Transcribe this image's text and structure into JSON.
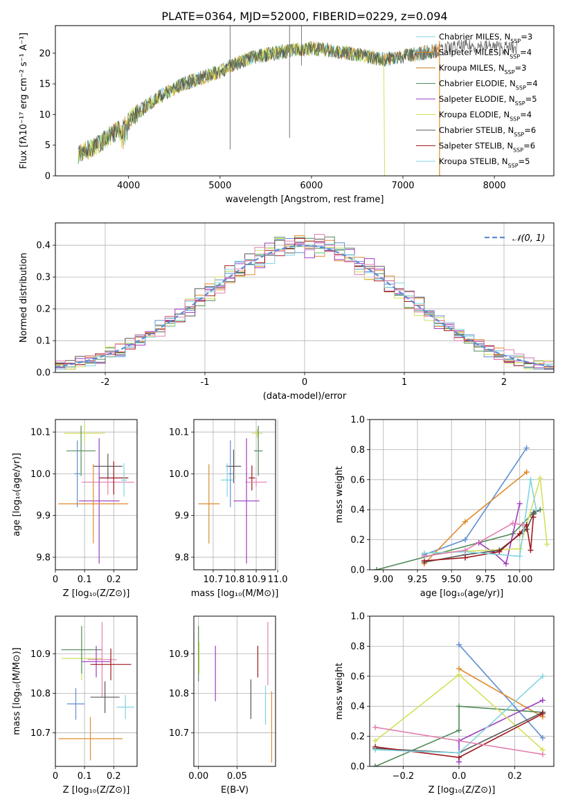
{
  "title": "PLATE=0364, MJD=52000, FIBERID=0229, z=0.094",
  "colors": {
    "chabrier_miles": "#5f8dd3",
    "salpeter_miles": "#e08a2e",
    "kroupa_miles": "#c27a1e",
    "chabrier_elodie": "#4f8a57",
    "salpeter_elodie": "#9c3bbf",
    "kroupa_elodie": "#d4e05a",
    "chabrier_stelib": "#555555",
    "salpeter_stelib": "#a0161c",
    "kroupa_stelib": "#7fd3e0",
    "pink": "#e37fb0",
    "gaussian": "#5b8dd0",
    "grid": "#b0b0b0"
  },
  "chart_data": [
    {
      "id": "spectrum",
      "type": "line",
      "xlabel": "wavelength [Angstrom, rest frame]",
      "ylabel": "Flux [fλ10⁻¹⁷ erg cm⁻² s⁻¹ A⁻¹]",
      "xlim": [
        3200,
        8650
      ],
      "ylim": [
        0,
        24.5
      ],
      "xticks": [
        4000,
        5000,
        6000,
        7000,
        8000
      ],
      "yticks": [
        0,
        5,
        10,
        15,
        20
      ],
      "legend": [
        "Chabrier MILES, N_SSP=3",
        "Salpeter MILES, N_SSP=4",
        "Kroupa MILES, N_SSP=3",
        "Chabrier ELODIE, N_SSP=4",
        "Salpeter ELODIE, N_SSP=5",
        "Kroupa ELODIE, N_SSP=4",
        "Chabrier STELIB, N_SSP=6",
        "Salpeter STELIB, N_SSP=6",
        "Kroupa STELIB, N_SSP=5"
      ],
      "continuum": {
        "x": [
          3450,
          3600,
          3800,
          4000,
          4200,
          4400,
          4600,
          4800,
          5000,
          5200,
          5400,
          5600,
          5800,
          6000,
          6200,
          6400,
          6600,
          6800,
          7000,
          7200,
          7400,
          7600,
          7800,
          8000,
          8200
        ],
        "y": [
          3.5,
          4.5,
          6.5,
          9.0,
          11.5,
          13.5,
          15.0,
          16.0,
          17.0,
          18.5,
          19.5,
          20.0,
          20.5,
          20.8,
          20.5,
          20.0,
          19.5,
          19.0,
          19.5,
          20.0,
          20.5,
          21.0,
          21.2,
          21.0,
          20.8
        ]
      }
    },
    {
      "id": "residuals",
      "type": "bar",
      "xlabel": "(data-model)/error",
      "ylabel": "Normed distribution",
      "xlim": [
        -2.5,
        2.5
      ],
      "ylim": [
        0,
        0.47
      ],
      "xticks": [
        -2,
        -1,
        0,
        1,
        2
      ],
      "yticks": [
        0.0,
        0.1,
        0.2,
        0.3,
        0.4
      ],
      "legend": "𝒩(0, 1)",
      "bin_width": 0.1
    },
    {
      "id": "age_vs_z",
      "type": "scatter",
      "xlabel": "Z [log₁₀(Z/Z⊙)]",
      "ylabel": "age  [log₁₀(age/yr)]",
      "xlim": [
        0.0,
        0.28
      ],
      "ylim": [
        9.77,
        10.13
      ],
      "xticks": [
        0.0,
        0.1,
        0.2
      ],
      "yticks": [
        9.8,
        9.9,
        10.0,
        10.1
      ],
      "points": [
        {
          "c": "kroupa_elodie",
          "x": 0.1,
          "xe": 0.07,
          "y": 10.097,
          "ye": 0.025
        },
        {
          "c": "chabrier_elodie",
          "x": 0.088,
          "xe": 0.05,
          "y": 10.055,
          "ye": 0.06
        },
        {
          "c": "chabrier_miles",
          "x": 0.075,
          "xe": 0.01,
          "y": 10.0,
          "ye": 0.08
        },
        {
          "c": "pink",
          "x": 0.18,
          "xe": 0.09,
          "y": 9.98,
          "ye": 0.03
        },
        {
          "c": "salpeter_stelib",
          "x": 0.2,
          "xe": 0.05,
          "y": 9.99,
          "ye": 0.04
        },
        {
          "c": "chabrier_stelib",
          "x": 0.18,
          "xe": 0.05,
          "y": 10.018,
          "ye": 0.03
        },
        {
          "c": "kroupa_stelib",
          "x": 0.235,
          "xe": 0.01,
          "y": 9.985,
          "ye": 0.04
        },
        {
          "c": "salpeter_elodie",
          "x": 0.15,
          "xe": 0.07,
          "y": 9.935,
          "ye": 0.15
        },
        {
          "c": "salpeter_miles",
          "x": 0.13,
          "xe": 0.12,
          "y": 9.928,
          "ye": 0.095
        }
      ]
    },
    {
      "id": "age_vs_mass",
      "type": "scatter",
      "xlabel": "mass [log₁₀(M/M⊙)]",
      "ylabel": "",
      "xlim": [
        10.61,
        10.99
      ],
      "ylim": [
        9.77,
        10.13
      ],
      "xticks": [
        10.7,
        10.8,
        10.9,
        11.0
      ],
      "xticklabels": [
        "10.7",
        "10.8",
        "10.9",
        "11.0"
      ],
      "yticks": [
        9.8,
        9.9,
        10.0,
        10.1
      ],
      "points": [
        {
          "c": "kroupa_elodie",
          "x": 10.905,
          "xe": 0.025,
          "y": 10.097,
          "ye": 0.01
        },
        {
          "c": "chabrier_elodie",
          "x": 10.91,
          "xe": 0.02,
          "y": 10.055,
          "ye": 0.06
        },
        {
          "c": "chabrier_stelib",
          "x": 10.795,
          "xe": 0.035,
          "y": 10.018,
          "ye": 0.04
        },
        {
          "c": "kroupa_stelib",
          "x": 10.765,
          "xe": 0.03,
          "y": 9.985,
          "ye": 0.04
        },
        {
          "c": "salpeter_stelib",
          "x": 10.88,
          "xe": 0.015,
          "y": 9.99,
          "ye": 0.03
        },
        {
          "c": "pink",
          "x": 10.9,
          "xe": 0.05,
          "y": 9.98,
          "ye": 0.01
        },
        {
          "c": "salpeter_elodie",
          "x": 10.855,
          "xe": 0.06,
          "y": 9.935,
          "ye": 0.15
        },
        {
          "c": "chabrier_miles",
          "x": 10.78,
          "xe": 0.01,
          "y": 10.0,
          "ye": 0.08
        },
        {
          "c": "salpeter_miles",
          "x": 10.68,
          "xe": 0.05,
          "y": 9.928,
          "ye": 0.095
        }
      ]
    },
    {
      "id": "weight_vs_age",
      "type": "line",
      "xlabel": "age  [log₁₀(age/yr)]",
      "ylabel": "mass weight",
      "xlim": [
        8.9,
        10.25
      ],
      "ylim": [
        0.0,
        1.0
      ],
      "xticks": [
        9.0,
        9.25,
        9.5,
        9.75,
        10.0
      ],
      "xticklabels": [
        "9.00",
        "9.25",
        "9.50",
        "9.75",
        "10.00"
      ],
      "yticks": [
        0.0,
        0.2,
        0.4,
        0.6,
        0.8,
        1.0
      ],
      "series": [
        {
          "c": "chabrier_miles",
          "x": [
            9.3,
            9.6,
            10.05
          ],
          "y": [
            0.1,
            0.2,
            0.81
          ]
        },
        {
          "c": "salpeter_miles",
          "x": [
            9.3,
            9.6,
            10.05,
            10.05
          ],
          "y": [
            0.04,
            0.32,
            0.65,
            0.65
          ]
        },
        {
          "c": "chabrier_elodie",
          "x": [
            8.95,
            9.95,
            10.1,
            10.15
          ],
          "y": [
            0.0,
            0.24,
            0.38,
            0.4
          ]
        },
        {
          "c": "salpeter_elodie",
          "x": [
            9.7,
            9.8,
            9.9,
            10.0
          ],
          "y": [
            0.18,
            0.12,
            0.04,
            0.44
          ]
        },
        {
          "c": "kroupa_elodie",
          "x": [
            9.3,
            10.0,
            10.15,
            10.2
          ],
          "y": [
            0.11,
            0.14,
            0.61,
            0.17
          ]
        },
        {
          "c": "chabrier_stelib",
          "x": [
            9.3,
            9.6,
            9.85,
            10.05,
            10.1,
            10.12
          ],
          "y": [
            0.05,
            0.1,
            0.13,
            0.27,
            0.37,
            0.39
          ]
        },
        {
          "c": "salpeter_stelib",
          "x": [
            9.3,
            9.6,
            9.85,
            10.0,
            10.05,
            10.08,
            10.1
          ],
          "y": [
            0.06,
            0.08,
            0.12,
            0.24,
            0.3,
            0.13,
            0.35
          ]
        },
        {
          "c": "kroupa_stelib",
          "x": [
            9.3,
            9.6,
            10.0,
            10.08,
            10.12
          ],
          "y": [
            0.11,
            0.12,
            0.09,
            0.6,
            0.4
          ]
        },
        {
          "c": "pink",
          "x": [
            9.3,
            9.6,
            9.95,
            10.02
          ],
          "y": [
            0.09,
            0.13,
            0.31,
            0.3
          ]
        }
      ]
    },
    {
      "id": "mass_vs_z",
      "type": "scatter",
      "xlabel": "Z [log₁₀(Z/Z⊙)]",
      "ylabel": "mass [log₁₀(M/M⊙)]",
      "xlim": [
        0.0,
        0.28
      ],
      "ylim": [
        10.615,
        10.995
      ],
      "xticks": [
        0.0,
        0.1,
        0.2
      ],
      "yticks": [
        10.7,
        10.8,
        10.9
      ],
      "points": [
        {
          "c": "kroupa_elodie",
          "x": 0.09,
          "xe": 0.07,
          "y": 10.888,
          "ye": 0.055
        },
        {
          "c": "chabrier_elodie",
          "x": 0.09,
          "xe": 0.07,
          "y": 10.91,
          "ye": 0.06
        },
        {
          "c": "pink",
          "x": 0.16,
          "xe": 0.05,
          "y": 10.885,
          "ye": 0.095
        },
        {
          "c": "salpeter_elodie",
          "x": 0.14,
          "xe": 0.05,
          "y": 10.88,
          "ye": 0.04
        },
        {
          "c": "salpeter_stelib",
          "x": 0.19,
          "xe": 0.07,
          "y": 10.873,
          "ye": 0.04
        },
        {
          "c": "chabrier_stelib",
          "x": 0.17,
          "xe": 0.05,
          "y": 10.79,
          "ye": 0.04
        },
        {
          "c": "kroupa_stelib",
          "x": 0.24,
          "xe": 0.03,
          "y": 10.765,
          "ye": 0.03
        },
        {
          "c": "chabrier_miles",
          "x": 0.07,
          "xe": 0.03,
          "y": 10.773,
          "ye": 0.04
        },
        {
          "c": "salpeter_miles",
          "x": 0.12,
          "xe": 0.11,
          "y": 10.685,
          "ye": 0.055
        }
      ]
    },
    {
      "id": "mass_vs_ebv",
      "type": "scatter",
      "xlabel": "E(B-V)",
      "ylabel": "",
      "xlim": [
        -0.006,
        0.1
      ],
      "ylim": [
        10.615,
        10.995
      ],
      "xticks": [
        0.0,
        0.05
      ],
      "xticklabels": [
        "0.00",
        "0.05"
      ],
      "yticks": [
        10.7,
        10.8,
        10.9
      ],
      "points": [
        {
          "c": "chabrier_elodie",
          "x": 0.0,
          "xe": 0.0,
          "y": 10.9,
          "ye": 0.07
        },
        {
          "c": "kroupa_elodie",
          "x": 0.001,
          "xe": 0.0,
          "y": 10.89,
          "ye": 0.04
        },
        {
          "c": "salpeter_elodie",
          "x": 0.022,
          "xe": 0.0,
          "y": 10.85,
          "ye": 0.07
        },
        {
          "c": "chabrier_stelib",
          "x": 0.068,
          "xe": 0.0,
          "y": 10.785,
          "ye": 0.05
        },
        {
          "c": "salpeter_stelib",
          "x": 0.077,
          "xe": 0.0,
          "y": 10.88,
          "ye": 0.04
        },
        {
          "c": "kroupa_stelib",
          "x": 0.087,
          "xe": 0.0,
          "y": 10.77,
          "ye": 0.05
        },
        {
          "c": "pink",
          "x": 0.09,
          "xe": 0.0,
          "y": 10.9,
          "ye": 0.08
        },
        {
          "c": "salpeter_miles",
          "x": 0.095,
          "xe": 0.0,
          "y": 10.715,
          "ye": 0.09
        }
      ]
    },
    {
      "id": "weight_vs_z",
      "type": "line",
      "xlabel": "Z [log₁₀(Z/Z⊙)]",
      "ylabel": "mass weight",
      "xlim": [
        -0.32,
        0.34
      ],
      "ylim": [
        0.0,
        1.0
      ],
      "xticks": [
        -0.2,
        0.0,
        0.2
      ],
      "xticklabels": [
        "−0.2",
        "0.0",
        "0.2"
      ],
      "yticks": [
        0.0,
        0.2,
        0.4,
        0.6,
        0.8,
        1.0
      ],
      "series": [
        {
          "c": "chabrier_miles",
          "x": [
            0.0,
            0.3
          ],
          "y": [
            0.81,
            0.19
          ]
        },
        {
          "c": "salpeter_miles",
          "x": [
            0.0,
            0.3
          ],
          "y": [
            0.65,
            0.33
          ]
        },
        {
          "c": "chabrier_elodie",
          "x": [
            -0.3,
            0.0,
            0.0,
            0.3
          ],
          "y": [
            0.0,
            0.24,
            0.4,
            0.36
          ]
        },
        {
          "c": "salpeter_elodie",
          "x": [
            0.0,
            0.0,
            0.3
          ],
          "y": [
            0.03,
            0.17,
            0.44
          ]
        },
        {
          "c": "kroupa_elodie",
          "x": [
            -0.3,
            0.0,
            0.3
          ],
          "y": [
            0.17,
            0.61,
            0.11
          ]
        },
        {
          "c": "chabrier_stelib",
          "x": [
            -0.3,
            0.0,
            0.3
          ],
          "y": [
            0.12,
            0.09,
            0.36
          ]
        },
        {
          "c": "salpeter_stelib",
          "x": [
            -0.3,
            0.0,
            0.3
          ],
          "y": [
            0.13,
            0.06,
            0.35
          ]
        },
        {
          "c": "kroupa_stelib",
          "x": [
            -0.3,
            0.0,
            0.3
          ],
          "y": [
            0.11,
            0.09,
            0.6
          ]
        },
        {
          "c": "pink",
          "x": [
            -0.3,
            0.3
          ],
          "y": [
            0.26,
            0.08
          ]
        }
      ]
    }
  ]
}
